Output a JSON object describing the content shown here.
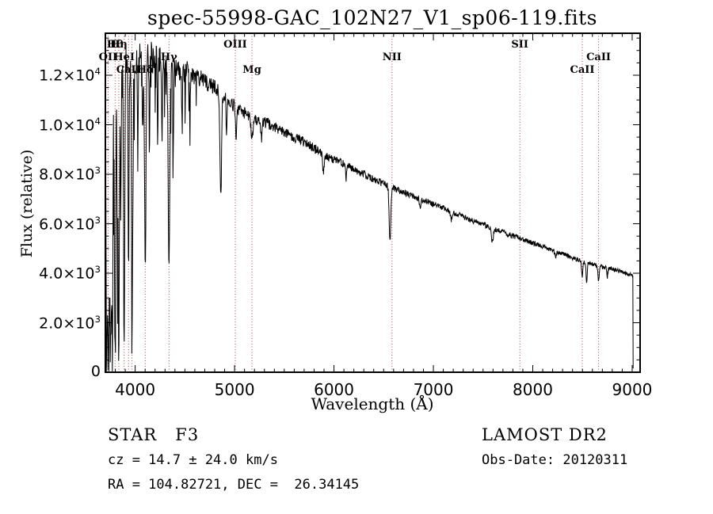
{
  "title": "spec-55998-GAC_102N27_V1_sp06-119.fits",
  "axis": {
    "xlabel": "Wavelength (Å)",
    "ylabel": "Flux (relative)"
  },
  "footer": {
    "class_line": "STAR   F3",
    "cz_line": "cz = 14.7 ± 24.0 km/s",
    "radec_line": "RA = 104.82721, DEC =  26.34145",
    "survey": "LAMOST DR2",
    "obsdate_line": "Obs-Date: 20120311"
  },
  "colors": {
    "background": "#ffffff",
    "spectrum": "#000000",
    "marker_line": "#993333",
    "text": "#000000"
  },
  "chart_data": {
    "type": "line",
    "title": "spec-55998-GAC_102N27_V1_sp06-119.fits",
    "xlabel": "Wavelength (Å)",
    "ylabel": "Flux (relative)",
    "xlim": [
      3700,
      9080
    ],
    "ylim": [
      0,
      13696
    ],
    "grid": false,
    "x_major_ticks": [
      4000,
      5000,
      6000,
      7000,
      8000,
      9000
    ],
    "x_minor_step": 100,
    "y_major_ticks": [
      {
        "value": 0,
        "label": "0",
        "mantissa": "0",
        "exponent": null
      },
      {
        "value": 2000,
        "label": "2.0×10³",
        "mantissa": "2.0",
        "exponent": "3"
      },
      {
        "value": 4000,
        "label": "4.0×10³",
        "mantissa": "4.0",
        "exponent": "3"
      },
      {
        "value": 6000,
        "label": "6.0×10³",
        "mantissa": "6.0",
        "exponent": "3"
      },
      {
        "value": 8000,
        "label": "8.0×10³",
        "mantissa": "8.0",
        "exponent": "3"
      },
      {
        "value": 10000,
        "label": "1.0×10⁴",
        "mantissa": "1.0",
        "exponent": "4"
      },
      {
        "value": 12000,
        "label": "1.2×10⁴",
        "mantissa": "1.2",
        "exponent": "4"
      }
    ],
    "y_minor_step": 500,
    "marked_lines": [
      {
        "label": "OII",
        "wavelength": 3727,
        "row": 2
      },
      {
        "label": "Hθ",
        "wavelength": 3798,
        "row": 1
      },
      {
        "label": "Hη",
        "wavelength": 3835,
        "row": 1
      },
      {
        "label": "HeI",
        "wavelength": 3889,
        "row": 2
      },
      {
        "label": "CaII",
        "wavelength": 3933,
        "row": 3
      },
      {
        "label": "",
        "wavelength": 3968,
        "row": 3
      },
      {
        "label": "Hδ",
        "wavelength": 4101,
        "row": 3
      },
      {
        "label": "Hγ",
        "wavelength": 4340,
        "row": 2
      },
      {
        "label": "OIII",
        "wavelength": 5007,
        "row": 1
      },
      {
        "label": "Mg",
        "wavelength": 5175,
        "row": 3
      },
      {
        "label": "NII",
        "wavelength": 6584,
        "row": 2
      },
      {
        "label": "SII",
        "wavelength": 7870,
        "row": 1
      },
      {
        "label": "CaII",
        "wavelength": 8498,
        "row": 3
      },
      {
        "label": "CaII",
        "wavelength": 8662,
        "row": 2
      }
    ],
    "continuum_points": [
      [
        3700,
        10200
      ],
      [
        3740,
        11000
      ],
      [
        3790,
        12000
      ],
      [
        3840,
        12300
      ],
      [
        3890,
        12500
      ],
      [
        3940,
        12600
      ],
      [
        4000,
        12600
      ],
      [
        4060,
        12850
      ],
      [
        4120,
        12750
      ],
      [
        4180,
        12850
      ],
      [
        4240,
        12650
      ],
      [
        4300,
        12400
      ],
      [
        4360,
        12300
      ],
      [
        4440,
        12300
      ],
      [
        4520,
        12150
      ],
      [
        4600,
        12000
      ],
      [
        4700,
        11750
      ],
      [
        4800,
        11500
      ],
      [
        4900,
        11200
      ],
      [
        5000,
        10750
      ],
      [
        5100,
        10450
      ],
      [
        5200,
        10250
      ],
      [
        5300,
        10100
      ],
      [
        5400,
        9950
      ],
      [
        5500,
        9700
      ],
      [
        5600,
        9500
      ],
      [
        5700,
        9300
      ],
      [
        5800,
        9050
      ],
      [
        5900,
        8800
      ],
      [
        6000,
        8600
      ],
      [
        6100,
        8400
      ],
      [
        6200,
        8200
      ],
      [
        6300,
        8000
      ],
      [
        6400,
        7800
      ],
      [
        6500,
        7620
      ],
      [
        6600,
        7450
      ],
      [
        6700,
        7280
      ],
      [
        6800,
        7120
      ],
      [
        6900,
        6950
      ],
      [
        7000,
        6780
      ],
      [
        7150,
        6550
      ],
      [
        7300,
        6280
      ],
      [
        7450,
        6030
      ],
      [
        7600,
        5800
      ],
      [
        7750,
        5580
      ],
      [
        7900,
        5370
      ],
      [
        8050,
        5150
      ],
      [
        8200,
        4920
      ],
      [
        8350,
        4700
      ],
      [
        8500,
        4480
      ],
      [
        8650,
        4300
      ],
      [
        8800,
        4150
      ],
      [
        8900,
        4050
      ],
      [
        9000,
        3950
      ],
      [
        9008,
        3900
      ]
    ],
    "absorption_lines": [
      [
        3712,
        8500,
        5
      ],
      [
        3727,
        9800,
        5
      ],
      [
        3737,
        8200,
        4
      ],
      [
        3750,
        10600,
        5
      ],
      [
        3760,
        7000,
        4
      ],
      [
        3771,
        10400,
        5
      ],
      [
        3798,
        11600,
        6
      ],
      [
        3820,
        6500,
        4
      ],
      [
        3835,
        11900,
        6
      ],
      [
        3856,
        6000,
        4
      ],
      [
        3889,
        11200,
        6
      ],
      [
        3933,
        8600,
        5
      ],
      [
        3970,
        10200,
        6
      ],
      [
        4026,
        4200,
        4
      ],
      [
        4077,
        3500,
        4
      ],
      [
        4101,
        8200,
        7
      ],
      [
        4144,
        3800,
        4
      ],
      [
        4226,
        3200,
        4
      ],
      [
        4271,
        3000,
        4
      ],
      [
        4340,
        7700,
        8
      ],
      [
        4383,
        3600,
        4
      ],
      [
        4472,
        2500,
        4
      ],
      [
        4550,
        2000,
        4
      ],
      [
        4861,
        4400,
        8
      ],
      [
        4920,
        1500,
        5
      ],
      [
        5015,
        1200,
        5
      ],
      [
        5175,
        900,
        9
      ],
      [
        5270,
        700,
        6
      ],
      [
        5893,
        750,
        7
      ],
      [
        6122,
        500,
        5
      ],
      [
        6563,
        2250,
        8
      ],
      [
        6867,
        450,
        7
      ],
      [
        7180,
        350,
        8
      ],
      [
        7594,
        550,
        9
      ],
      [
        8230,
        300,
        6
      ],
      [
        8498,
        650,
        6
      ],
      [
        8542,
        750,
        6
      ],
      [
        8662,
        650,
        6
      ],
      [
        8750,
        350,
        5
      ]
    ],
    "noise_profile": [
      [
        3705,
        1500
      ],
      [
        3770,
        1000
      ],
      [
        3850,
        850
      ],
      [
        3950,
        700
      ],
      [
        4100,
        600
      ],
      [
        4300,
        560
      ],
      [
        4500,
        480
      ],
      [
        4700,
        340
      ],
      [
        4900,
        300
      ],
      [
        5200,
        240
      ],
      [
        5600,
        210
      ],
      [
        6000,
        180
      ],
      [
        6400,
        150
      ],
      [
        6800,
        130
      ],
      [
        7200,
        115
      ],
      [
        7600,
        110
      ],
      [
        8000,
        100
      ],
      [
        8500,
        95
      ],
      [
        9008,
        90
      ]
    ],
    "edge_drop_wavelength": 9008
  }
}
